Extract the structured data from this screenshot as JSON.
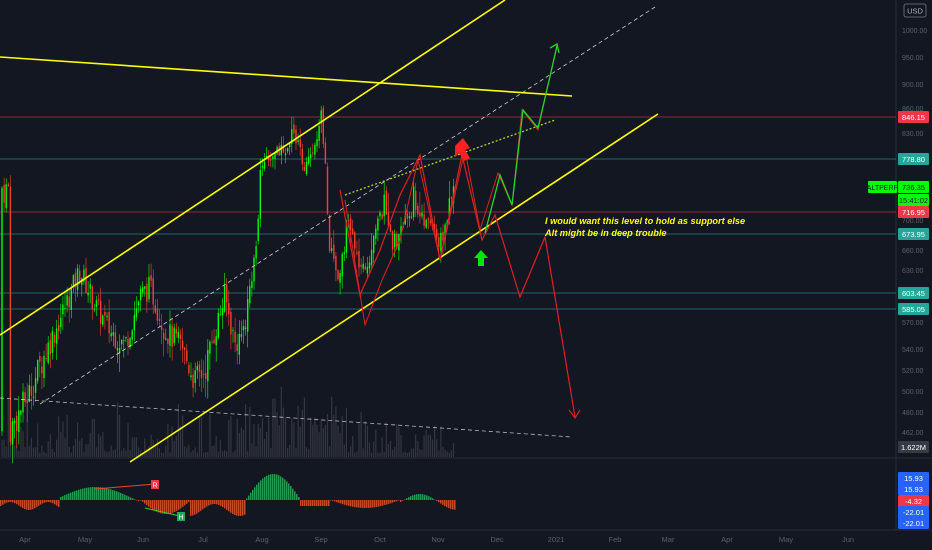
{
  "chart_data": {
    "type": "candlestick",
    "symbol": "ALTPERP",
    "currency": "USD",
    "price_axis": {
      "ticks": [
        1000,
        950,
        900,
        860,
        830,
        780,
        736,
        700,
        660,
        630,
        600,
        570,
        540,
        520,
        500,
        480,
        462
      ],
      "tick_labels": [
        "1000.00",
        "950.00",
        "900.00",
        "860.00",
        "830.00",
        "780.00",
        "736.00",
        "700.00",
        "660.00",
        "630.00",
        "600.00",
        "570.00",
        "540.00",
        "520.00",
        "500.00",
        "480.00",
        "462.00"
      ],
      "range": [
        449,
        1014
      ]
    },
    "time_axis": {
      "labels": [
        "Apr",
        "May",
        "Jun",
        "Jul",
        "Aug",
        "Sep",
        "Oct",
        "Nov",
        "Dec",
        "2021",
        "Feb",
        "Mar",
        "Apr",
        "May",
        "Jun"
      ]
    },
    "price_tags": [
      {
        "label": "846.15",
        "value": 846.15,
        "color": "#f23645"
      },
      {
        "label": "778.80",
        "value": 778.8,
        "color": "#26a69a"
      },
      {
        "label": "736.35",
        "value": 736.35,
        "color": "#00ff00",
        "symbol": "ALTPERP"
      },
      {
        "label": "15:41:02",
        "value": 727,
        "color": "#00ff00"
      },
      {
        "label": "716.95",
        "value": 716.95,
        "color": "#f23645"
      },
      {
        "label": "673.95",
        "value": 673.95,
        "color": "#26a69a"
      },
      {
        "label": "603.45",
        "value": 603.45,
        "color": "#26a69a"
      },
      {
        "label": "585.05",
        "value": 585.05,
        "color": "#26a69a"
      },
      {
        "label": "1.622M",
        "value": 0,
        "color": "#363a45",
        "kind": "volume"
      }
    ],
    "horizontal_levels": [
      846.15,
      778.8,
      716.95,
      673.95,
      603.45,
      585.05
    ],
    "annotation": {
      "line1": "I would want this level to hold as support else",
      "line2": "Alt might be in deep trouble",
      "color": "#ffff00"
    },
    "oscillator": {
      "tags": [
        {
          "label": "15.93",
          "color": "#2962ff"
        },
        {
          "label": "15.93",
          "color": "#2962ff"
        },
        {
          "label": "-4.32",
          "color": "#f23645"
        },
        {
          "label": "-22.01",
          "color": "#2962ff"
        },
        {
          "label": "-22.01",
          "color": "#2962ff"
        }
      ],
      "divergence_labels": [
        "R",
        "H"
      ]
    },
    "colors": {
      "background": "#131722",
      "up": "#00ff00",
      "down": "#ff3b30",
      "channel": "#ffff00",
      "bull_path": "#29d429",
      "bear_path": "#e02020",
      "level_green": "#26a69a",
      "level_red": "#f23645"
    }
  }
}
